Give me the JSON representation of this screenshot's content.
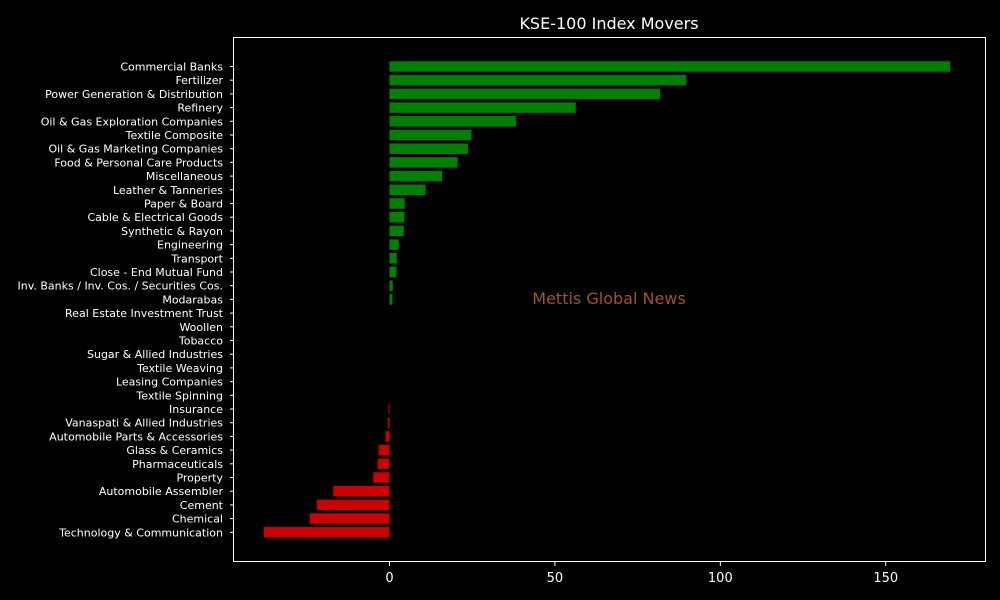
{
  "chart_data": {
    "type": "bar",
    "orientation": "horizontal",
    "title": "KSE-100 Index Movers",
    "xlabel": "",
    "ylabel": "",
    "xlim": [
      -47,
      180
    ],
    "xticks": [
      0,
      50,
      100,
      150
    ],
    "grid": false,
    "watermark": "Mettis Global News",
    "colors": {
      "background": "#000000",
      "frame": "#ffffff",
      "text": "#ffffff",
      "positive": "#008000",
      "negative": "#cc0000",
      "watermark": "#a0522d"
    },
    "categories": [
      "Commercial Banks",
      "Fertilizer",
      "Power Generation & Distribution",
      "Refinery",
      "Oil & Gas Exploration Companies",
      "Textile Composite",
      "Oil & Gas Marketing Companies",
      "Food & Personal Care Products",
      "Miscellaneous",
      "Leather & Tanneries",
      "Paper & Board",
      "Cable & Electrical Goods",
      "Synthetic & Rayon",
      "Engineering",
      "Transport",
      "Close - End Mutual Fund",
      "Inv. Banks / Inv. Cos. / Securities Cos.",
      "Modarabas",
      "Real Estate Investment Trust",
      "Woollen",
      "Tobacco",
      "Sugar & Allied Industries",
      "Textile Weaving",
      "Leasing Companies",
      "Textile Spinning",
      "Insurance",
      "Vanaspati & Allied Industries",
      "Automobile Parts & Accessories",
      "Glass & Ceramics",
      "Pharmaceuticals",
      "Property",
      "Automobile Assembler",
      "Cement",
      "Chemical",
      "Technology & Communication"
    ],
    "values": [
      169.5,
      89.7,
      81.8,
      56.3,
      38.2,
      24.8,
      23.7,
      20.6,
      15.9,
      10.9,
      4.6,
      4.5,
      4.3,
      2.8,
      2.2,
      2.1,
      1.0,
      0.9,
      0,
      0,
      0,
      0,
      0,
      0,
      0,
      -0.3,
      -0.5,
      -1.2,
      -3.3,
      -3.6,
      -4.9,
      -17.0,
      -21.9,
      -24.1,
      -38.0
    ]
  }
}
